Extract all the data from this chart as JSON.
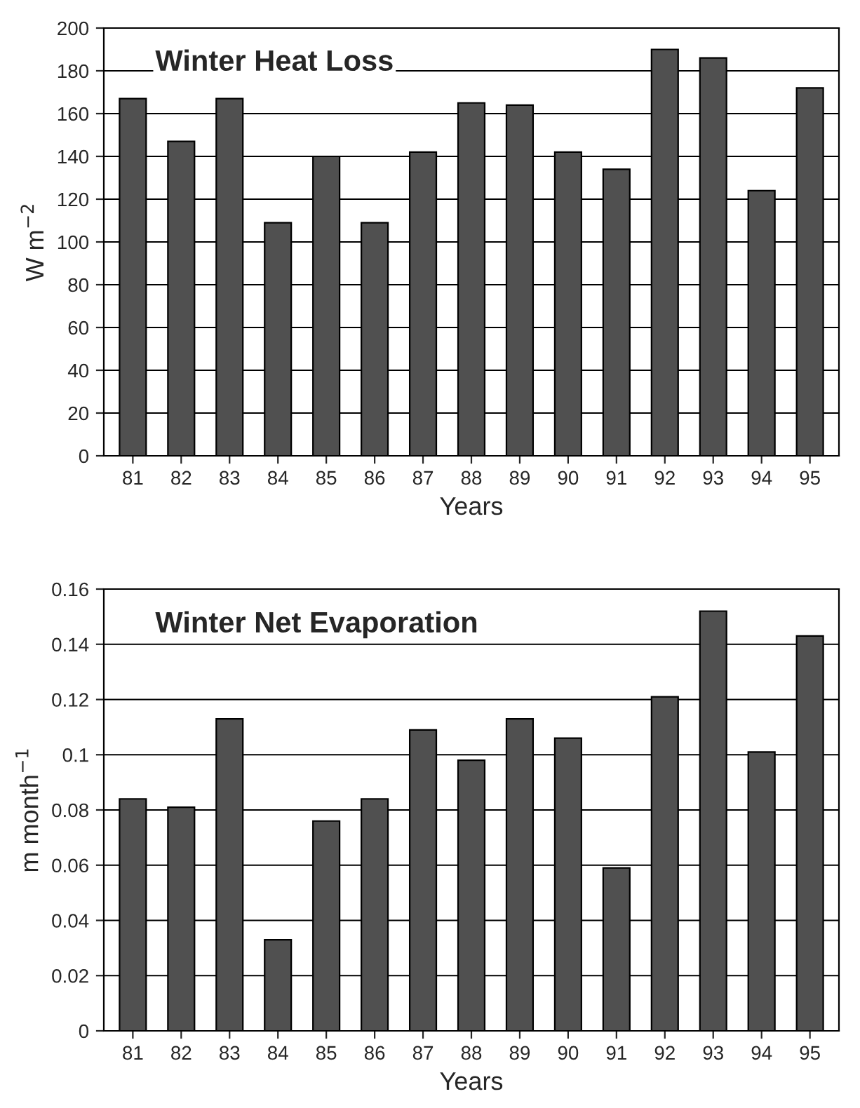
{
  "chart_data": [
    {
      "type": "bar",
      "title": "Winter Heat Loss",
      "xlabel": "Years",
      "ylabel": "W m$^{−2}$",
      "categories": [
        "81",
        "82",
        "83",
        "84",
        "85",
        "86",
        "87",
        "88",
        "89",
        "90",
        "91",
        "92",
        "93",
        "94",
        "95"
      ],
      "values": [
        167,
        147,
        167,
        109,
        140,
        109,
        142,
        165,
        164,
        142,
        134,
        190,
        186,
        124,
        172
      ],
      "color": "#505050",
      "ylim": [
        0,
        200
      ],
      "yticks": [
        0,
        20,
        40,
        60,
        80,
        100,
        120,
        140,
        160,
        180,
        200
      ],
      "grid": "y"
    },
    {
      "type": "bar",
      "title": "Winter Net Evaporation",
      "xlabel": "Years",
      "ylabel": "m month$^{−1}$",
      "categories": [
        "81",
        "82",
        "83",
        "84",
        "85",
        "86",
        "87",
        "88",
        "89",
        "90",
        "91",
        "92",
        "93",
        "94",
        "95"
      ],
      "values": [
        0.084,
        0.081,
        0.113,
        0.033,
        0.076,
        0.084,
        0.109,
        0.098,
        0.113,
        0.106,
        0.059,
        0.121,
        0.152,
        0.101,
        0.143
      ],
      "color": "#505050",
      "ylim": [
        0,
        0.16
      ],
      "yticks": [
        0,
        0.02,
        0.04,
        0.06,
        0.08,
        0.1,
        0.12,
        0.14,
        0.16
      ],
      "grid": "y"
    }
  ]
}
